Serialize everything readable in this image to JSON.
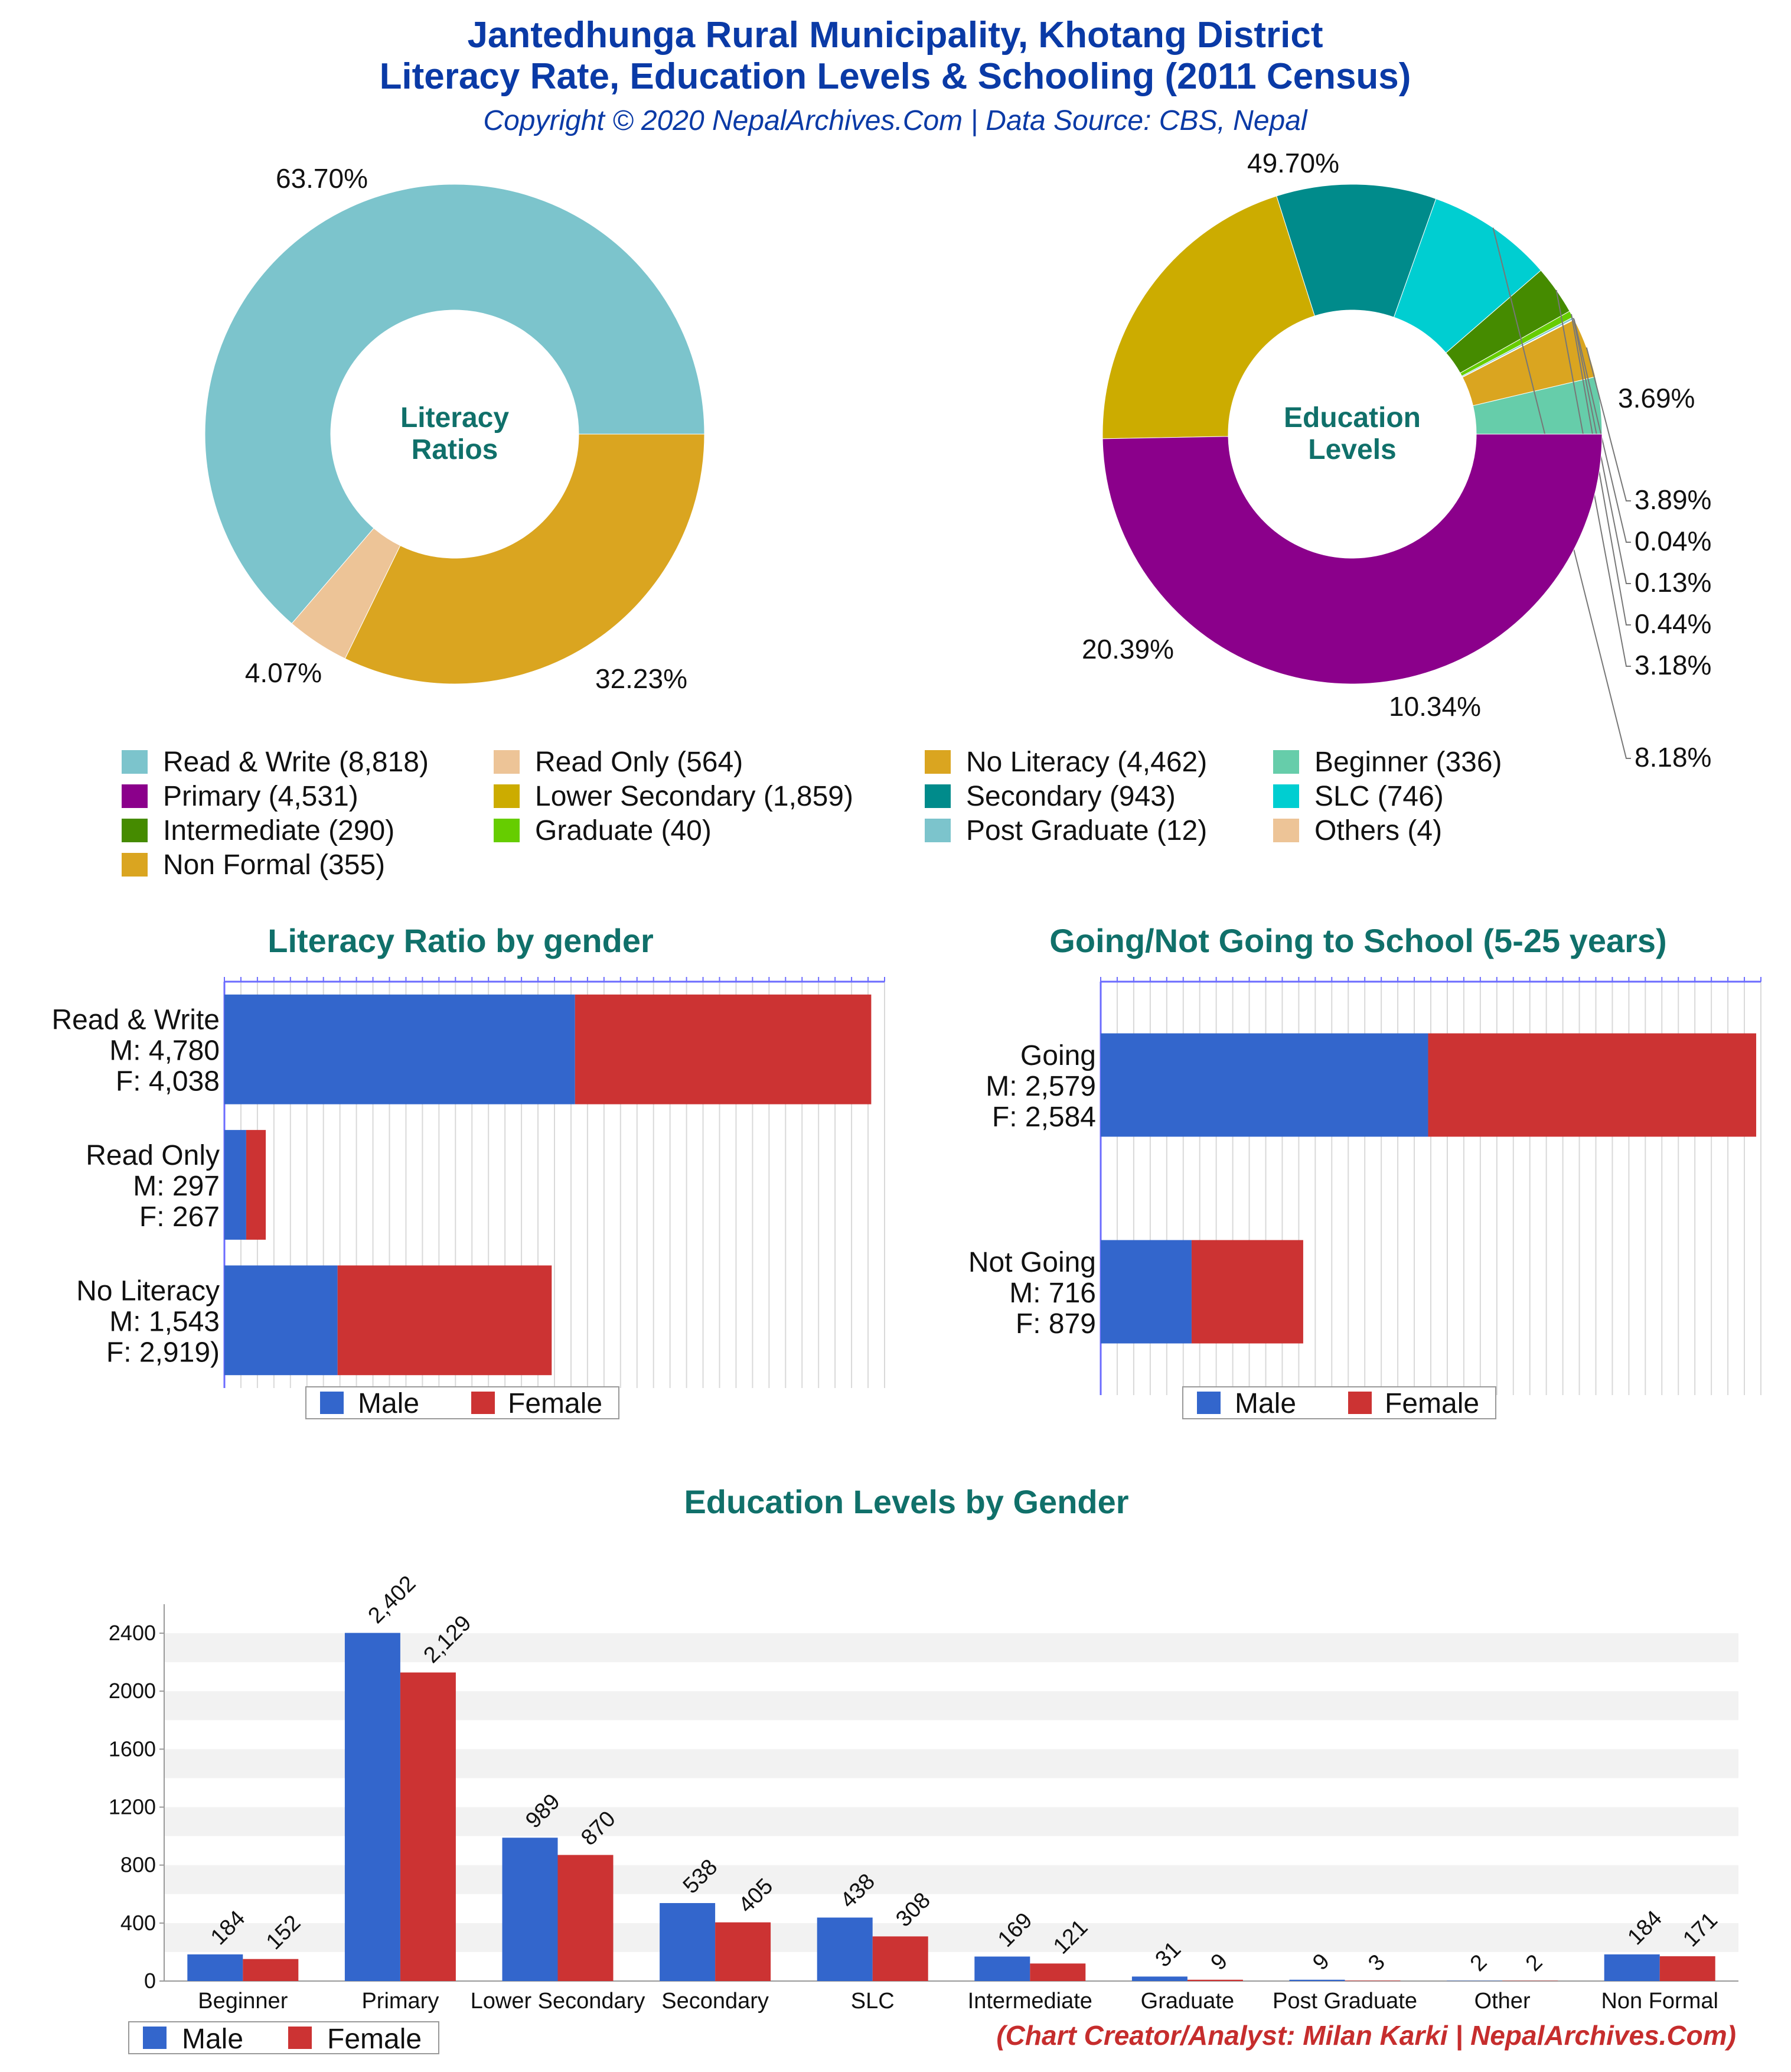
{
  "header": {
    "title_line1": "Jantedhunga Rural Municipality, Khotang District",
    "title_line2": "Literacy Rate, Education Levels & Schooling (2011 Census)",
    "copyright": "Copyright © 2020 NepalArchives.Com | Data Source: CBS, Nepal"
  },
  "footer": {
    "credit": "(Chart Creator/Analyst: Milan Karki | NepalArchives.Com)"
  },
  "colors": {
    "male": "#3366cc",
    "female": "#cc3333",
    "title": "#0a3aa6",
    "chart_title": "#10706a"
  },
  "legends": {
    "pie": [
      {
        "label": "Read & Write (8,818)",
        "color": "#7cc4cc"
      },
      {
        "label": "Read Only (564)",
        "color": "#edc497"
      },
      {
        "label": "No Literacy (4,462)",
        "color": "#daa520"
      },
      {
        "label": "Beginner (336)",
        "color": "#66cdaa"
      },
      {
        "label": "Primary (4,531)",
        "color": "#8b008b"
      },
      {
        "label": "Lower Secondary (1,859)",
        "color": "#ccac00"
      },
      {
        "label": "Secondary (943)",
        "color": "#008b8b"
      },
      {
        "label": "SLC (746)",
        "color": "#00ced1"
      },
      {
        "label": "Intermediate (290)",
        "color": "#458b00"
      },
      {
        "label": "Graduate (40)",
        "color": "#66cd00"
      },
      {
        "label": "Post Graduate (12)",
        "color": "#7cc4cc"
      },
      {
        "label": "Others (4)",
        "color": "#edc497"
      },
      {
        "label": "Non Formal (355)",
        "color": "#daa520"
      }
    ],
    "gender": {
      "male": "Male",
      "female": "Female"
    }
  },
  "chart_data": [
    {
      "type": "pie",
      "center_label": [
        "Literacy",
        "Ratios"
      ],
      "slices": [
        {
          "label": "Read & Write",
          "value": 8818,
          "percent_label": "63.70%",
          "color": "#7cc4cc"
        },
        {
          "label": "Read Only",
          "value": 564,
          "percent_label": "4.07%",
          "color": "#edc497"
        },
        {
          "label": "No Literacy",
          "value": 4462,
          "percent_label": "32.23%",
          "color": "#daa520"
        }
      ]
    },
    {
      "type": "pie",
      "center_label": [
        "Education",
        "Levels"
      ],
      "slices": [
        {
          "label": "Beginner",
          "value": 336,
          "percent_label": "3.69%",
          "color": "#66cdaa"
        },
        {
          "label": "Non Formal",
          "value": 355,
          "percent_label": "3.89%",
          "color": "#daa520"
        },
        {
          "label": "Others",
          "value": 4,
          "percent_label": "0.04%",
          "color": "#edc497"
        },
        {
          "label": "Post Graduate",
          "value": 12,
          "percent_label": "0.13%",
          "color": "#7cc4cc"
        },
        {
          "label": "Graduate",
          "value": 40,
          "percent_label": "0.44%",
          "color": "#66cd00"
        },
        {
          "label": "Intermediate",
          "value": 290,
          "percent_label": "3.18%",
          "color": "#458b00"
        },
        {
          "label": "SLC",
          "value": 746,
          "percent_label": "8.18%",
          "color": "#00ced1"
        },
        {
          "label": "Secondary",
          "value": 943,
          "percent_label": "10.34%",
          "color": "#008b8b"
        },
        {
          "label": "Lower Secondary",
          "value": 1859,
          "percent_label": "20.39%",
          "color": "#ccac00"
        },
        {
          "label": "Primary",
          "value": 4531,
          "percent_label": "49.70%",
          "color": "#8b008b"
        }
      ]
    },
    {
      "type": "bar",
      "orientation": "horizontal",
      "stacked": true,
      "title": "Literacy Ratio by gender",
      "xlim": [
        0,
        9000
      ],
      "categories": [
        {
          "lines": [
            "Read & Write",
            "M: 4,780",
            "F: 4,038"
          ]
        },
        {
          "lines": [
            "Read Only",
            "M: 297",
            "F: 267"
          ]
        },
        {
          "lines": [
            "No Literacy",
            "M: 1,543",
            "F: 2,919)"
          ]
        }
      ],
      "series": [
        {
          "name": "Male",
          "values": [
            4780,
            297,
            1543
          ]
        },
        {
          "name": "Female",
          "values": [
            4038,
            267,
            2919
          ]
        }
      ],
      "legend": "bottom"
    },
    {
      "type": "bar",
      "orientation": "horizontal",
      "stacked": true,
      "title": "Going/Not Going to School (5-25 years)",
      "xlim": [
        0,
        5200
      ],
      "categories": [
        {
          "lines": [
            "Going",
            "M: 2,579",
            "F: 2,584"
          ]
        },
        {
          "lines": [
            "Not Going",
            "M: 716",
            "F: 879"
          ]
        }
      ],
      "series": [
        {
          "name": "Male",
          "values": [
            2579,
            716
          ]
        },
        {
          "name": "Female",
          "values": [
            2584,
            879
          ]
        }
      ],
      "legend": "bottom"
    },
    {
      "type": "bar",
      "orientation": "vertical",
      "title": "Education Levels by Gender",
      "categories": [
        "Beginner",
        "Primary",
        "Lower Secondary",
        "Secondary",
        "SLC",
        "Intermediate",
        "Graduate",
        "Post Graduate",
        "Other",
        "Non Formal"
      ],
      "series": [
        {
          "name": "Male",
          "values": [
            184,
            2402,
            989,
            538,
            438,
            169,
            31,
            9,
            2,
            184
          ],
          "labels": [
            "184",
            "2,402",
            "989",
            "538",
            "438",
            "169",
            "31",
            "9",
            "2",
            "184"
          ]
        },
        {
          "name": "Female",
          "values": [
            152,
            2129,
            870,
            405,
            308,
            121,
            9,
            3,
            2,
            171
          ],
          "labels": [
            "152",
            "2,129",
            "870",
            "405",
            "308",
            "121",
            "9",
            "3",
            "2",
            "171"
          ]
        }
      ],
      "ylim": [
        0,
        2600
      ],
      "yticks": [
        "0",
        "400",
        "800",
        "1200",
        "1600",
        "2000",
        "2400"
      ],
      "grid": true,
      "legend": "bottom-left"
    }
  ]
}
